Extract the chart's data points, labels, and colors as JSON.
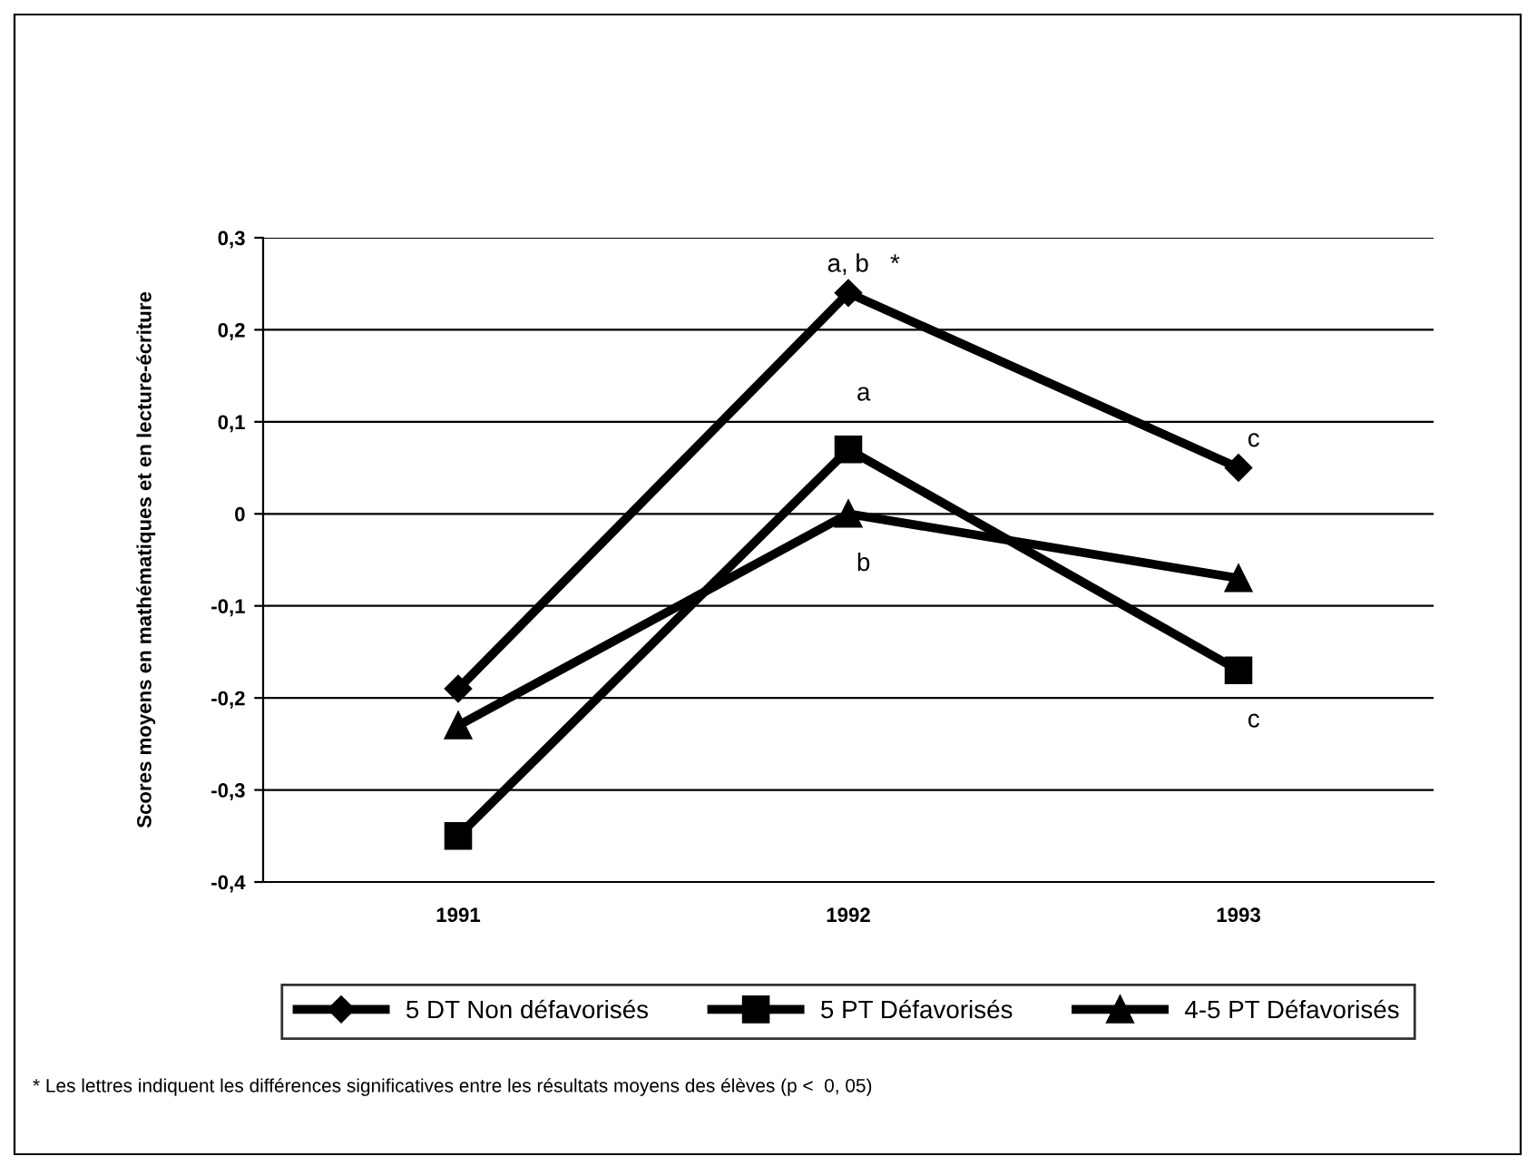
{
  "chart_data": {
    "type": "line",
    "ylabel": "Scores moyens en mathématiques et en lecture-écriture",
    "categories": [
      "1991",
      "1992",
      "1993"
    ],
    "series": [
      {
        "name": "5 DT Non défavorisés",
        "color": "#000000",
        "marker": "diamond",
        "values": [
          -0.19,
          0.24,
          0.05
        ]
      },
      {
        "name": "5 PT Défavorisés",
        "color": "#000000",
        "marker": "square",
        "values": [
          -0.35,
          0.07,
          -0.17
        ]
      },
      {
        "name": "4-5 PT Défavorisés",
        "color": "#000000",
        "marker": "triangle",
        "values": [
          -0.23,
          0.0,
          -0.07
        ]
      }
    ],
    "ylim": [
      -0.4,
      0.3
    ],
    "yticks": [
      {
        "value": -0.4,
        "label": "-0,4"
      },
      {
        "value": -0.3,
        "label": "-0,3"
      },
      {
        "value": -0.2,
        "label": "-0,2"
      },
      {
        "value": -0.1,
        "label": "-0,1"
      },
      0,
      {
        "value": 0.1,
        "label": "0,1"
      },
      {
        "value": 0.2,
        "label": "0,2"
      },
      {
        "value": 0.3,
        "label": "0,3"
      }
    ],
    "grid": "y",
    "legend": "bottom",
    "line_style": "solid",
    "annotations": [
      {
        "text": "a, b   *",
        "x": "1992",
        "y": 0.24
      },
      {
        "text": "a",
        "x": "1992",
        "y": 0.07
      },
      {
        "text": "b",
        "x": "1992",
        "y": 0.0
      },
      {
        "text": "c",
        "x": "1993",
        "y": 0.05
      },
      {
        "text": "c",
        "x": "1993",
        "y": -0.17
      },
      "* Les lettres indiquent les différences significatives entre les résultats moyens des élèves (p <  0, 05)"
    ]
  }
}
